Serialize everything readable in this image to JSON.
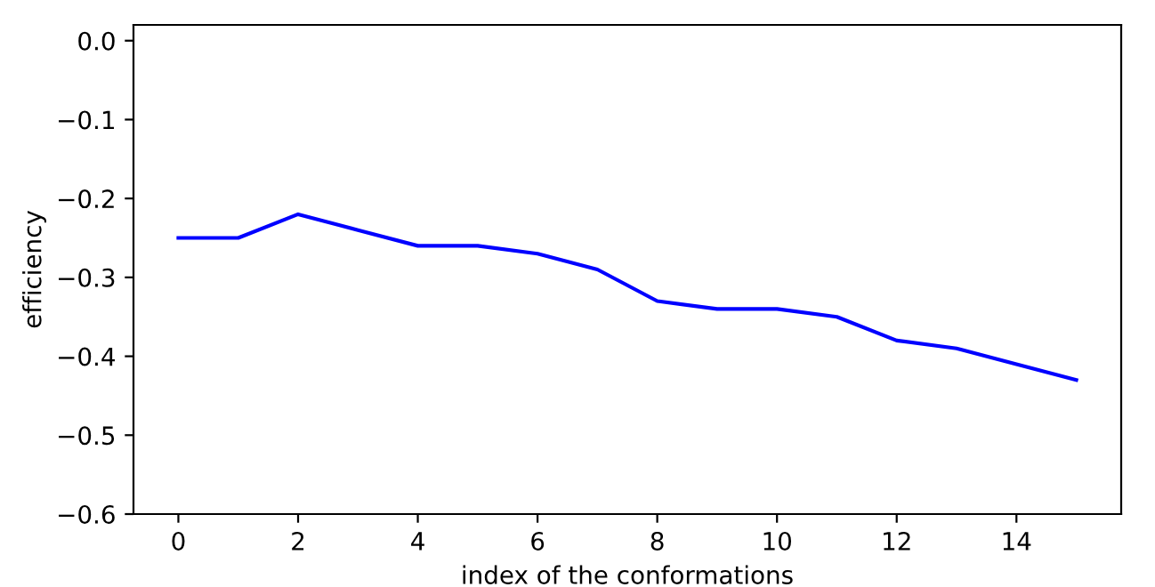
{
  "chart_data": {
    "type": "line",
    "xlabel": "index of the conformations",
    "ylabel": "efficiency",
    "x": [
      0,
      1,
      2,
      3,
      4,
      5,
      6,
      7,
      8,
      9,
      10,
      11,
      12,
      13,
      14,
      15
    ],
    "series": [
      {
        "color": "#0000ff",
        "values": [
          -0.25,
          -0.25,
          -0.22,
          -0.24,
          -0.26,
          -0.26,
          -0.27,
          -0.29,
          -0.33,
          -0.34,
          -0.34,
          -0.35,
          -0.38,
          -0.39,
          -0.41,
          -0.43
        ]
      }
    ],
    "xlim": [
      -0.75,
      15.75
    ],
    "ylim": [
      -0.6,
      0.02
    ],
    "xticks": [
      0,
      2,
      4,
      6,
      8,
      10,
      12,
      14
    ],
    "yticks": [
      {
        "value": 0.0,
        "label": "0.0"
      },
      {
        "value": -0.1,
        "label": "−0.1"
      },
      {
        "value": -0.2,
        "label": "−0.2"
      },
      {
        "value": -0.3,
        "label": "−0.3"
      },
      {
        "value": -0.4,
        "label": "−0.4"
      },
      {
        "value": -0.5,
        "label": "−0.5"
      },
      {
        "value": -0.6,
        "label": "−0.6"
      }
    ],
    "grid": false,
    "legend": false
  }
}
